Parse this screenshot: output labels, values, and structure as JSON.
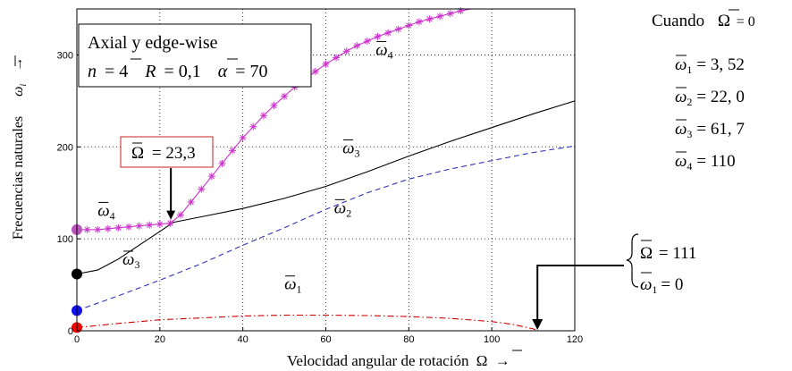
{
  "chart_data": {
    "type": "line",
    "xlabel": "Velocidad angular de rotación",
    "xlabel_symbol": "Ω",
    "ylabel": "Frecuencias naturales",
    "ylabel_symbol": "ω",
    "ylabel_subscript": "i",
    "arrow_glyph": "→",
    "xlim": [
      0,
      120
    ],
    "ylim": [
      0,
      350
    ],
    "xticks": [
      0,
      20,
      40,
      60,
      80,
      100,
      120
    ],
    "yticks": [
      0,
      100,
      200,
      300
    ],
    "grid": true,
    "legend_box": {
      "line1": "Axial y edge-wise",
      "n_label": "n",
      "n_value": "= 4",
      "R_label": "R",
      "R_value": "= 0,1",
      "alpha_label": "α",
      "alpha_value": "= 70"
    },
    "callout": {
      "symbol": "Ω",
      "text": "= 23,3",
      "x": 23.3,
      "y": 118
    },
    "critical_annotation": {
      "symbol": "Ω",
      "text1": "= 111",
      "omega": "ω",
      "sub": "1",
      "text2": "= 0",
      "x": 111,
      "y": 0
    },
    "side_panel": {
      "title": "Cuando",
      "condition_symbol": "Ω",
      "condition_value": "= 0",
      "items": [
        {
          "symbol": "ω",
          "sub": "1",
          "value": "= 3, 52"
        },
        {
          "symbol": "ω",
          "sub": "2",
          "value": "= 22, 0"
        },
        {
          "symbol": "ω",
          "sub": "3",
          "value": "= 61, 7"
        },
        {
          "symbol": "ω",
          "sub": "4",
          "value": "= 110"
        }
      ]
    },
    "series": [
      {
        "name": "ω1",
        "color": "#cc0000",
        "style": "dashdot",
        "x": [
          0,
          10,
          20,
          30,
          40,
          50,
          60,
          70,
          80,
          90,
          100,
          105,
          110,
          111
        ],
        "y": [
          3.52,
          8,
          12,
          14,
          16,
          17,
          17,
          16.5,
          15.5,
          13.5,
          10,
          7,
          2,
          0
        ]
      },
      {
        "name": "ω2",
        "color": "#3333bb",
        "style": "dashed",
        "x": [
          0,
          10,
          20,
          30,
          40,
          50,
          60,
          70,
          80,
          90,
          100,
          110,
          120
        ],
        "y": [
          22,
          38,
          55,
          73,
          93,
          112,
          132,
          150,
          165,
          176,
          185,
          194,
          201
        ]
      },
      {
        "name": "ω3",
        "color": "#000000",
        "style": "solid",
        "x": [
          0,
          5,
          10,
          15,
          20,
          23.3,
          30,
          40,
          50,
          60,
          70,
          80,
          90,
          100,
          110,
          120
        ],
        "y": [
          61.7,
          66,
          78,
          93,
          108,
          118,
          124,
          133,
          144,
          157,
          173,
          190,
          206,
          221,
          236,
          250
        ]
      },
      {
        "name": "ω4",
        "color": "#cc33cc",
        "style": "solid-star",
        "x": [
          0,
          2.5,
          5,
          7.5,
          10,
          12.5,
          15,
          17.5,
          20,
          22.5,
          25,
          27.5,
          30,
          32.5,
          35,
          37.5,
          40,
          42.5,
          45,
          47.5,
          50,
          52.5,
          55,
          57.5,
          60,
          62.5,
          65,
          67.5,
          70,
          72.5,
          75,
          77.5,
          80,
          82.5,
          85,
          87.5,
          90,
          92.5,
          95,
          97.5,
          100,
          102.5
        ],
        "y": [
          110,
          110,
          110,
          111,
          112,
          113,
          114,
          115,
          116,
          117,
          126,
          140,
          154,
          168,
          182,
          196,
          210,
          222,
          234,
          245,
          255,
          265,
          274,
          282,
          290,
          297,
          304,
          310,
          315,
          320,
          324,
          328,
          332,
          336,
          339,
          342,
          345,
          348,
          351,
          354,
          357,
          360
        ]
      }
    ],
    "start_markers": [
      {
        "series": "ω1",
        "y": 3.52,
        "color": "#ee0000"
      },
      {
        "series": "ω2",
        "y": 22,
        "color": "#1111ee"
      },
      {
        "series": "ω3",
        "y": 61.7,
        "color": "#000000"
      },
      {
        "series": "ω4",
        "y": 110,
        "color": "#bb55bb"
      }
    ],
    "curve_labels": [
      {
        "series": "ω4",
        "sub": "4",
        "x": 72,
        "y": 300
      },
      {
        "series": "ω3",
        "sub": "3",
        "x": 64,
        "y": 193
      },
      {
        "series": "ω2",
        "sub": "2",
        "x": 62,
        "y": 128
      },
      {
        "series": "ω1",
        "sub": "1",
        "x": 50,
        "y": 45
      },
      {
        "series": "ω4",
        "sub": "4",
        "x": 5,
        "y": 125
      },
      {
        "series": "ω3",
        "sub": "3",
        "x": 11,
        "y": 72
      }
    ]
  }
}
